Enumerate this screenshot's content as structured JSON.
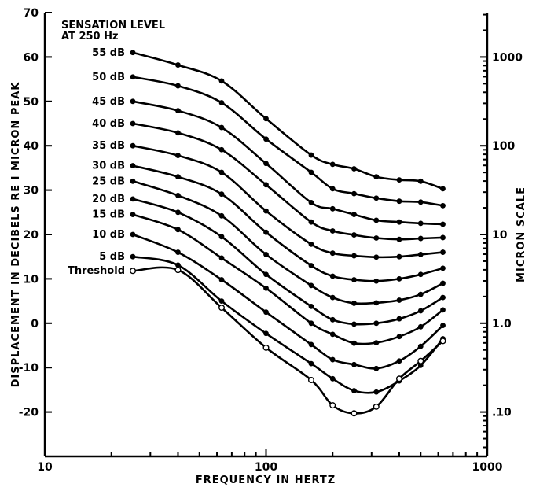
{
  "chart_data": {
    "type": "line",
    "title": [
      "SENSATION LEVEL",
      "AT 250 Hz"
    ],
    "xlabel": "FREQUENCY IN HERTZ",
    "ylabel": "DISPLACEMENT IN DECIBELS RE I MICRON PEAK",
    "y2label": "MICRON SCALE",
    "x_scale": "log",
    "xlim": [
      10,
      1000
    ],
    "ylim": [
      -30,
      70
    ],
    "x_ticks": [
      10,
      100,
      1000
    ],
    "x_tick_labels": [
      "10",
      "100",
      "1000"
    ],
    "y_ticks": [
      -20,
      -10,
      0,
      10,
      20,
      30,
      40,
      50,
      60,
      70
    ],
    "y_tick_labels": [
      "-20",
      "-10",
      "0",
      "10",
      "20",
      "30",
      "40",
      "50",
      "60",
      "70"
    ],
    "y2_ticks": [
      {
        "label": "1000",
        "micron": 1000
      },
      {
        "label": "100",
        "micron": 100
      },
      {
        "label": "10",
        "micron": 10
      },
      {
        "label": "1.0",
        "micron": 1
      },
      {
        "label": ".10",
        "micron": 0.1
      }
    ],
    "grid": false,
    "series": [
      {
        "name": "55 dB",
        "marker": "filled",
        "x": [
          25,
          40,
          63,
          100,
          160,
          200,
          250,
          315,
          400,
          500,
          630
        ],
        "y": [
          61,
          58.2,
          54.6,
          46.1,
          37.9,
          35.8,
          34.8,
          33.0,
          32.3,
          32.0,
          30.3
        ]
      },
      {
        "name": "50 dB",
        "marker": "filled",
        "x": [
          25,
          40,
          63,
          100,
          160,
          200,
          250,
          315,
          400,
          500,
          630
        ],
        "y": [
          55.5,
          53.5,
          49.7,
          41.5,
          34.0,
          30.3,
          29.2,
          28.2,
          27.5,
          27.3,
          26.5
        ]
      },
      {
        "name": "45 dB",
        "marker": "filled",
        "x": [
          25,
          40,
          63,
          100,
          160,
          200,
          250,
          315,
          400,
          500,
          630
        ],
        "y": [
          50,
          47.9,
          44.1,
          36.0,
          27.2,
          25.8,
          24.5,
          23.2,
          22.8,
          22.5,
          22.3
        ]
      },
      {
        "name": "40 dB",
        "marker": "filled",
        "x": [
          25,
          40,
          63,
          100,
          160,
          200,
          250,
          315,
          400,
          500,
          630
        ],
        "y": [
          45,
          42.9,
          39.1,
          31.2,
          22.8,
          20.8,
          19.9,
          19.2,
          18.9,
          19.1,
          19.3
        ]
      },
      {
        "name": "35 dB",
        "marker": "filled",
        "x": [
          25,
          40,
          63,
          100,
          160,
          200,
          250,
          315,
          400,
          500,
          630
        ],
        "y": [
          40,
          37.8,
          34.0,
          25.3,
          17.8,
          15.8,
          15.2,
          14.9,
          15.0,
          15.5,
          16.0
        ]
      },
      {
        "name": "30 dB",
        "marker": "filled",
        "x": [
          25,
          40,
          63,
          100,
          160,
          200,
          250,
          315,
          400,
          500,
          630
        ],
        "y": [
          35.5,
          33.0,
          29.1,
          20.5,
          13.0,
          10.6,
          9.8,
          9.5,
          10.0,
          11.0,
          12.4
        ]
      },
      {
        "name": "25 dB",
        "marker": "filled",
        "x": [
          25,
          40,
          63,
          100,
          160,
          200,
          250,
          315,
          400,
          500,
          630
        ],
        "y": [
          32,
          28.8,
          24.2,
          15.5,
          8.5,
          5.8,
          4.5,
          4.6,
          5.2,
          6.5,
          9.0
        ]
      },
      {
        "name": "20 dB",
        "marker": "filled",
        "x": [
          25,
          40,
          63,
          100,
          160,
          200,
          250,
          315,
          400,
          500,
          630
        ],
        "y": [
          28,
          25.0,
          19.5,
          11.0,
          3.8,
          0.8,
          -0.2,
          0.0,
          1.0,
          2.8,
          5.8
        ]
      },
      {
        "name": "15 dB",
        "marker": "filled",
        "x": [
          25,
          40,
          63,
          100,
          160,
          200,
          250,
          315,
          400,
          500,
          630
        ],
        "y": [
          24.5,
          21.1,
          14.7,
          7.9,
          0.0,
          -2.5,
          -4.5,
          -4.4,
          -3.0,
          -0.8,
          3.0
        ]
      },
      {
        "name": "10 dB",
        "marker": "filled",
        "x": [
          25,
          40,
          63,
          100,
          160,
          200,
          250,
          315,
          400,
          500,
          630
        ],
        "y": [
          20,
          16.0,
          9.8,
          2.5,
          -4.8,
          -8.2,
          -9.3,
          -10.2,
          -8.5,
          -5.2,
          -0.5
        ]
      },
      {
        "name": "5 dB",
        "marker": "filled",
        "x": [
          25,
          40,
          63,
          100,
          160,
          200,
          250,
          315,
          400,
          500,
          630
        ],
        "y": [
          15,
          13.1,
          5.0,
          -2.3,
          -9.1,
          -12.5,
          -15.2,
          -15.5,
          -13.0,
          -9.5,
          -3.5
        ]
      },
      {
        "name": "Threshold",
        "marker": "open",
        "x": [
          25,
          40,
          63,
          100,
          160,
          200,
          250,
          315,
          400,
          500,
          630
        ],
        "y": [
          11.8,
          12.0,
          3.5,
          -5.5,
          -12.8,
          -18.5,
          -20.3,
          -18.8,
          -12.5,
          -8.5,
          -4.0
        ]
      }
    ]
  }
}
